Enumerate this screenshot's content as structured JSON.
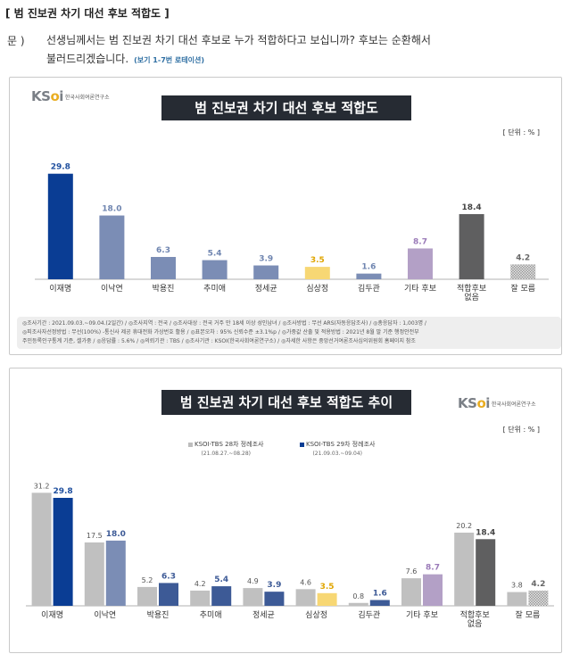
{
  "header": "[ 범 진보권 차기 대선 후보 적합도 ]",
  "question": {
    "label": "문 )",
    "text1": "선생님께서는 범 진보권 차기 대선 후보로 누가 적합하다고 보십니까? 후보는 순환해서",
    "text2": "불러드리겠습니다.",
    "note": "(보기 1-7번 로테이션)"
  },
  "logo": {
    "mark1": "KS",
    "mark2": "o",
    "mark3": "i",
    "sub": "한국사회여론연구소"
  },
  "chart1": {
    "title": "범 진보권 차기 대선 후보 적합도",
    "unit": "[ 단위 : % ]"
  },
  "chart2": {
    "title": "범 진보권 차기 대선 후보 적합도 추이",
    "unit": "[ 단위 : % ]",
    "legend1": "KSOI-TBS 28차 정례조사",
    "legend1_period": "(21.08.27.~08.28)",
    "legend2": "KSOI-TBS 29차 정례조사",
    "legend2_period": "(21.09.03.~09.04)"
  },
  "footnote": {
    "line1": "◎조사기간 : 2021.09.03.~09.04.(2일간) / ◎조사지역 : 전국 / ◎조사대상 : 전국 거주 만 18세 이상 성인남녀 / ◎조사방법 : 무선 ARS(자동응답조사) / ◎총응답자 : 1,003명 /",
    "line2": "◎피조사자선정방법 : 무선(100%) -통신사 제공 휴대전화 가상번호 활용 / ◎표본오차 : 95% 신뢰수준 ±3.1%p / ◎가중값 산출 및 적용방법 : 2021년 8월 말 기준 행정안전부",
    "line3": "주민등록인구통계 기준, 셀가중 / ◎응답률 : 5.6% / ◎의뢰기관 : TBS / ◎조사기관 : KSOI(한국사회여론연구소) / ◎자세한 사항은 중앙선거여론조사심의위원회 홈페이지 참조"
  },
  "chart_data": [
    {
      "type": "bar",
      "title": "범 진보권 차기 대선 후보 적합도",
      "unit": "%",
      "categories": [
        "이재명",
        "이낙연",
        "박용진",
        "추미애",
        "정세균",
        "심상정",
        "김두관",
        "기타 후보",
        "적합후보 없음",
        "잘 모름"
      ],
      "values": [
        29.8,
        18.0,
        6.3,
        5.4,
        3.9,
        3.5,
        1.6,
        8.7,
        18.4,
        4.2
      ],
      "value_labels": [
        "29.8",
        "18.0",
        "6.3",
        "5.4",
        "3.9",
        "3.5",
        "1.6",
        "8.7",
        "18.4",
        "4.2"
      ],
      "colors": [
        "#0a3d94",
        "#7b8db5",
        "#7b8db5",
        "#7b8db5",
        "#7b8db5",
        "#f7d774",
        "#7b8db5",
        "#b3a0c6",
        "#5f5f60",
        "#bdbdbd"
      ],
      "label_colors": [
        "#1f4f9e",
        "#6f85b0",
        "#6f85b0",
        "#6f85b0",
        "#6f85b0",
        "#e0a500",
        "#6f85b0",
        "#9a7ab8",
        "#444444",
        "#666666"
      ],
      "ylim": [
        0,
        33
      ]
    },
    {
      "type": "bar",
      "title": "범 진보권 차기 대선 후보 적합도 추이",
      "unit": "%",
      "categories": [
        "이재명",
        "이낙연",
        "박용진",
        "추미애",
        "정세균",
        "심상정",
        "김두관",
        "기타 후보",
        "적합후보 없음",
        "잘 모름"
      ],
      "series": [
        {
          "name": "KSOI-TBS 28차 정례조사",
          "values": [
            31.2,
            17.5,
            5.2,
            4.2,
            4.9,
            4.6,
            0.8,
            7.6,
            20.2,
            3.8
          ],
          "value_labels": [
            "31.2",
            "17.5",
            "5.2",
            "4.2",
            "4.9",
            "4.6",
            "0.8",
            "7.6",
            "20.2",
            "3.8"
          ]
        },
        {
          "name": "KSOI-TBS 29차 정례조사",
          "values": [
            29.8,
            18.0,
            6.3,
            5.4,
            3.9,
            3.5,
            1.6,
            8.7,
            18.4,
            4.2
          ],
          "value_labels": [
            "29.8",
            "18.0",
            "6.3",
            "5.4",
            "3.9",
            "3.5",
            "1.6",
            "8.7",
            "18.4",
            "4.2"
          ],
          "colors": [
            "#0a3d94",
            "#7b8db5",
            "#3d5a96",
            "#3d5a96",
            "#3d5a96",
            "#f7d774",
            "#3d5a96",
            "#b3a0c6",
            "#5f5f60",
            "#bdbdbd"
          ]
        }
      ],
      "ylim": [
        0,
        33
      ]
    }
  ]
}
